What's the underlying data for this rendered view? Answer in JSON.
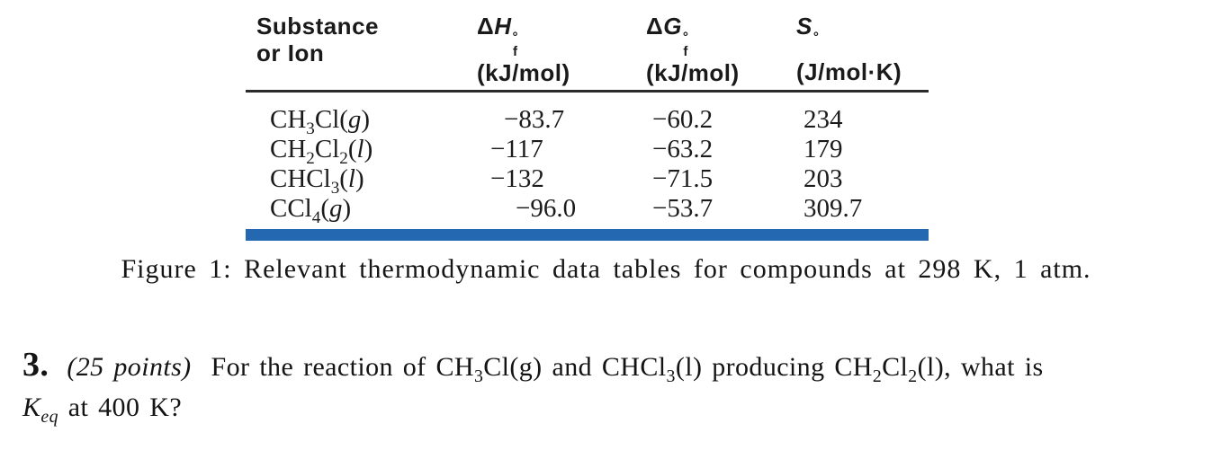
{
  "table": {
    "headers": {
      "substance": {
        "line1": "Substance",
        "line2": "or Ion"
      },
      "dH": {
        "delta": "Δ",
        "letter": "H",
        "sup": "°",
        "sub": "f",
        "unit": "(kJ/mol)"
      },
      "dG": {
        "delta": "Δ",
        "letter": "G",
        "sup": "°",
        "sub": "f",
        "unit": "(kJ/mol)"
      },
      "S": {
        "delta": "",
        "letter": "S",
        "sup": "°",
        "sub": "",
        "unit": "(J/mol·K)"
      }
    },
    "rows": [
      {
        "substance": [
          {
            "t": "CH"
          },
          {
            "sub": "3"
          },
          {
            "t": "Cl("
          },
          {
            "t": "g",
            "it": true
          },
          {
            "t": ")"
          }
        ],
        "dH": "−83.7",
        "dG": "−60.2",
        "S": "234"
      },
      {
        "substance": [
          {
            "t": "CH"
          },
          {
            "sub": "2"
          },
          {
            "t": "Cl"
          },
          {
            "sub": "2"
          },
          {
            "t": "("
          },
          {
            "t": "l",
            "it": true
          },
          {
            "t": ")"
          }
        ],
        "dH": "−117",
        "dG": "−63.2",
        "S": "179"
      },
      {
        "substance": [
          {
            "t": "CHCl"
          },
          {
            "sub": "3"
          },
          {
            "t": "("
          },
          {
            "t": "l",
            "it": true
          },
          {
            "t": ")"
          }
        ],
        "dH": "−132",
        "dG": "−71.5",
        "S": "203"
      },
      {
        "substance": [
          {
            "t": "CCl"
          },
          {
            "sub": "4"
          },
          {
            "t": "("
          },
          {
            "t": "g",
            "it": true
          },
          {
            "t": ")"
          }
        ],
        "dH": "−96.0",
        "dG": "−53.7",
        "S": "309.7"
      }
    ]
  },
  "caption": "Figure 1: Relevant thermodynamic data tables for compounds at 298 K, 1 atm.",
  "question": {
    "number": "3.",
    "points": "(25 points)",
    "body": [
      {
        "t": "For the reaction of CH"
      },
      {
        "sub": "3"
      },
      {
        "t": "Cl(g) and CHCl"
      },
      {
        "sub": "3"
      },
      {
        "t": "(l) producing CH"
      },
      {
        "sub": "2"
      },
      {
        "t": "Cl"
      },
      {
        "sub": "2"
      },
      {
        "t": "(l), what is"
      }
    ],
    "line2": [
      {
        "t": "K",
        "it": true
      },
      {
        "sub": "eq",
        "it": true
      },
      {
        "t": " at 400 K?"
      }
    ]
  },
  "colors": {
    "rule_blue": "#2368b0",
    "rule_black": "#2b2b2b",
    "text": "#1b1b1b"
  }
}
